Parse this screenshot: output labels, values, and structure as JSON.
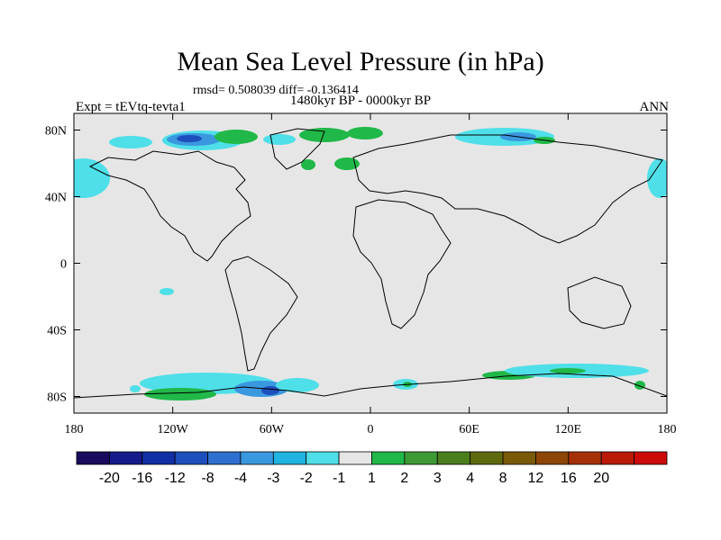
{
  "title": "Mean Sea Level Pressure (in hPa)",
  "stats": "rmsd= 0.508039 diff= -0.136414",
  "experiment": "Expt = tEVtq-tevta1",
  "period": "1480kyr BP - 0000kyr BP",
  "season": "ANN",
  "map": {
    "lon_range": [
      -180,
      180
    ],
    "lat_range": [
      -90,
      90
    ],
    "background_color": "#e6e6e6",
    "x_ticks": [
      {
        "lon": -180,
        "label": "180"
      },
      {
        "lon": -120,
        "label": "120W"
      },
      {
        "lon": -60,
        "label": "60W"
      },
      {
        "lon": 0,
        "label": "0"
      },
      {
        "lon": 60,
        "label": "60E"
      },
      {
        "lon": 120,
        "label": "120E"
      },
      {
        "lon": 180,
        "label": "180"
      }
    ],
    "y_ticks": [
      {
        "lat": 80,
        "label": "80N"
      },
      {
        "lat": 40,
        "label": "40N"
      },
      {
        "lat": 0,
        "label": "0"
      },
      {
        "lat": -40,
        "label": "40S"
      },
      {
        "lat": -80,
        "label": "80S"
      }
    ]
  },
  "colorbar": {
    "colors": [
      "#1a0a5e",
      "#151b8a",
      "#1230a5",
      "#1d4fbd",
      "#2f6fcf",
      "#3a98df",
      "#21b4e0",
      "#4fdfe8",
      "#e6e6e6",
      "#20b848",
      "#3e9a35",
      "#4a7f1e",
      "#5f6a10",
      "#7a5a08",
      "#8e4508",
      "#a63008",
      "#bb1a08",
      "#cc0a0a"
    ],
    "labels": [
      "-20",
      "-16",
      "-12",
      "-8",
      "-4",
      "-3",
      "-2",
      "-1",
      "1",
      "2",
      "3",
      "4",
      "8",
      "12",
      "16",
      "20"
    ]
  },
  "chart_data": {
    "type": "heatmap",
    "title": "Mean Sea Level Pressure (in hPa)",
    "units": "hPa",
    "levels": [
      -20,
      -16,
      -12,
      -8,
      -4,
      -3,
      -2,
      -1,
      1,
      2,
      3,
      4,
      8,
      12,
      16,
      20
    ],
    "anomaly_regions": [
      {
        "lon": -175,
        "lat": 60,
        "value": -2
      },
      {
        "lon": 175,
        "lat": 60,
        "value": -2
      },
      {
        "lon": -100,
        "lat": 78,
        "value": -4
      },
      {
        "lon": -90,
        "lat": 80,
        "value": -8
      },
      {
        "lon": -70,
        "lat": 78,
        "value": -3
      },
      {
        "lon": -40,
        "lat": 80,
        "value": 2
      },
      {
        "lon": -25,
        "lat": 72,
        "value": 2
      },
      {
        "lon": 10,
        "lat": 78,
        "value": 2
      },
      {
        "lon": 5,
        "lat": 70,
        "value": 3
      },
      {
        "lon": 80,
        "lat": 80,
        "value": -2
      },
      {
        "lon": 100,
        "lat": 78,
        "value": -4
      },
      {
        "lon": -110,
        "lat": -25,
        "value": -2
      },
      {
        "lon": -140,
        "lat": -70,
        "value": -2
      },
      {
        "lon": -120,
        "lat": -75,
        "value": 2
      },
      {
        "lon": -80,
        "lat": -74,
        "value": -3
      },
      {
        "lon": -60,
        "lat": -80,
        "value": -2
      },
      {
        "lon": 25,
        "lat": -75,
        "value": 2
      },
      {
        "lon": 80,
        "lat": -70,
        "value": 2
      },
      {
        "lon": 120,
        "lat": -64,
        "value": -2
      },
      {
        "lon": 150,
        "lat": -66,
        "value": -2
      }
    ]
  }
}
